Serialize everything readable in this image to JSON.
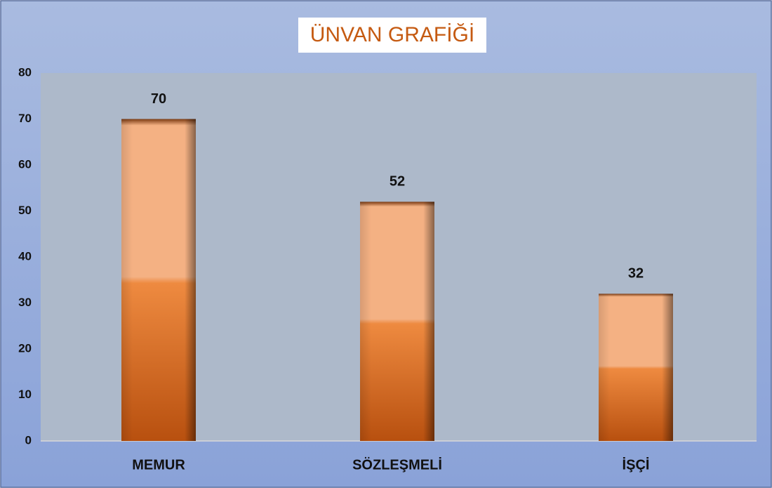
{
  "chart_data": {
    "type": "bar",
    "title": "ÜNVAN GRAFİĞİ",
    "categories": [
      "MEMUR",
      "SÖZLEŞMELİ",
      "İŞÇİ"
    ],
    "values": [
      70,
      52,
      32
    ],
    "color": "#ed7d31",
    "ylim": [
      0,
      80
    ],
    "yticks": [
      0,
      10,
      20,
      30,
      40,
      50,
      60,
      70,
      80
    ],
    "grid": false
  }
}
